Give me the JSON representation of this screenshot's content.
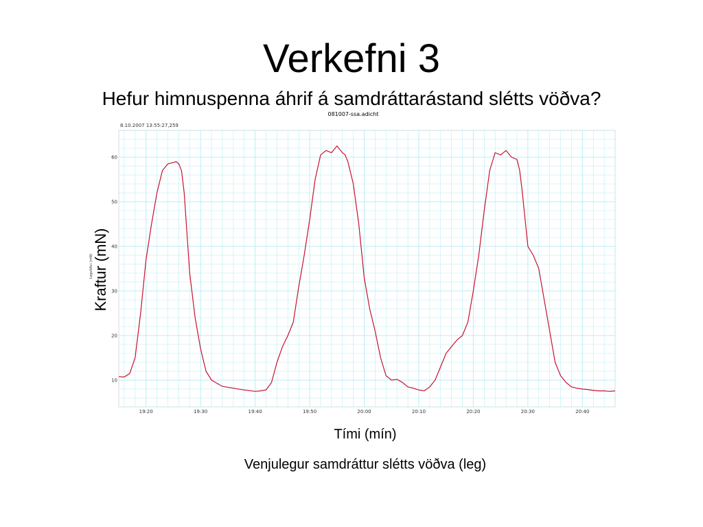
{
  "slide": {
    "title": "Verkefni 3",
    "subtitle": "Hefur himnuspenna áhrif á samdráttarástand slétts vöðva?",
    "caption": "Venjulegur samdráttur slétts vöðva (leg)"
  },
  "chart_data": {
    "type": "line",
    "title": "081007-ssa.adicht",
    "timestamp": "8.10.2007 13:55:27,259",
    "ylabel": "Kraftur (mN)",
    "ylabel_small": "Legvöðvi (mN)",
    "xlabel": "Tími (mín)",
    "xlim": [
      1155,
      1246
    ],
    "ylim": [
      4,
      66
    ],
    "yticks": [
      10,
      20,
      30,
      40,
      50,
      60
    ],
    "xticks": [
      {
        "value": 1160,
        "label": "19:20"
      },
      {
        "value": 1170,
        "label": "19:30"
      },
      {
        "value": 1180,
        "label": "19:40"
      },
      {
        "value": 1190,
        "label": "19:50"
      },
      {
        "value": 1200,
        "label": "20:00"
      },
      {
        "value": 1210,
        "label": "20:10"
      },
      {
        "value": 1220,
        "label": "20:20"
      },
      {
        "value": 1230,
        "label": "20:30"
      },
      {
        "value": 1240,
        "label": "20:40"
      }
    ],
    "grid": true,
    "color": "#c8102e",
    "gridColor": "#b8eef5",
    "series": [
      {
        "x": [
          1155,
          1156,
          1157,
          1158,
          1159,
          1160,
          1161,
          1162,
          1163,
          1164,
          1165,
          1165.5,
          1166,
          1166.5,
          1167,
          1168,
          1169,
          1170,
          1171,
          1172,
          1174,
          1176,
          1178,
          1180,
          1181,
          1182,
          1183,
          1184,
          1185,
          1186,
          1187,
          1188,
          1189,
          1190,
          1191,
          1192,
          1193,
          1194,
          1195,
          1196,
          1196.5,
          1197,
          1198,
          1199,
          1200,
          1201,
          1202,
          1203,
          1204,
          1205,
          1206,
          1207,
          1208,
          1209,
          1210,
          1211,
          1212,
          1213,
          1214,
          1215,
          1216,
          1217,
          1218,
          1219,
          1220,
          1221,
          1222,
          1223,
          1224,
          1225,
          1226,
          1227,
          1228,
          1228.5,
          1229,
          1230,
          1231,
          1232,
          1233,
          1234,
          1235,
          1236,
          1237,
          1238,
          1239,
          1240,
          1241,
          1242,
          1243,
          1244,
          1245,
          1246
        ],
        "y": [
          10.8,
          10.7,
          11.5,
          15,
          25,
          37,
          45,
          52,
          57,
          58.5,
          58.8,
          59,
          58.5,
          57,
          52,
          34,
          24,
          17,
          12,
          10,
          8.6,
          8.2,
          7.8,
          7.5,
          7.6,
          7.8,
          9.5,
          14,
          17.5,
          20,
          23,
          31,
          38,
          46,
          55,
          60.5,
          61.5,
          61,
          62.5,
          61,
          60.5,
          59,
          54,
          45,
          33,
          26,
          21,
          15,
          11,
          10,
          10.2,
          9.5,
          8.5,
          8.2,
          7.8,
          7.6,
          8.5,
          10,
          13,
          16,
          17.5,
          19,
          20,
          23,
          30,
          38,
          48,
          57,
          61,
          60.5,
          61.5,
          60,
          59.5,
          57,
          52,
          40,
          38,
          35,
          28,
          21,
          14,
          11,
          9.5,
          8.5,
          8.2,
          8.0,
          7.9,
          7.7,
          7.6,
          7.6,
          7.5,
          7.6
        ]
      }
    ]
  }
}
